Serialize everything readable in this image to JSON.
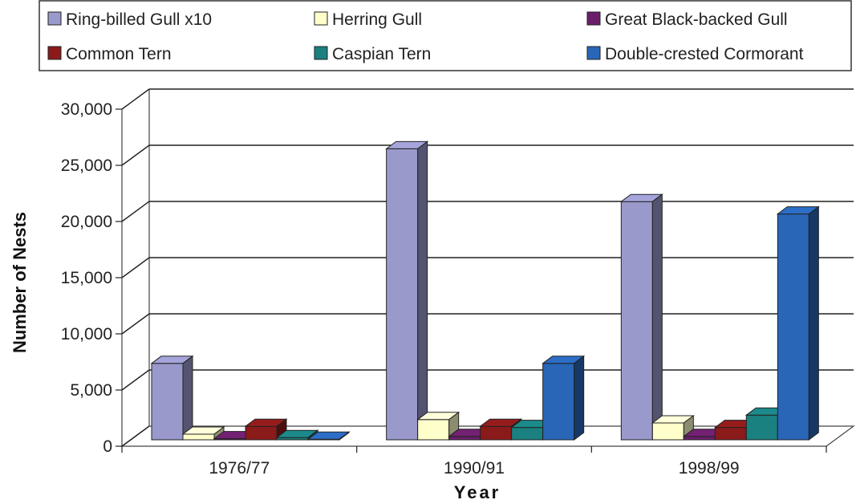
{
  "chart_data": {
    "type": "bar",
    "title": "",
    "xlabel": "Year",
    "ylabel": "Number of Nests",
    "ylim": [
      0,
      30000
    ],
    "yticks": [
      0,
      5000,
      10000,
      15000,
      20000,
      25000,
      30000
    ],
    "ytick_labels": [
      "0",
      "5,000",
      "10,000",
      "15,000",
      "20,000",
      "25,000",
      "30,000"
    ],
    "categories": [
      "1976/77",
      "1990/91",
      "1998/99"
    ],
    "grid": "horizontal",
    "legend_position": "top",
    "series": [
      {
        "name": "Ring-billed Gull x10",
        "values": [
          6800,
          25900,
          21200
        ],
        "color": "#9999cc"
      },
      {
        "name": "Herring Gull",
        "values": [
          500,
          1800,
          1500
        ],
        "color": "#ffffcc"
      },
      {
        "name": "Great Black-backed Gull",
        "values": [
          100,
          300,
          300
        ],
        "color": "#6b1f6b"
      },
      {
        "name": "Common Tern",
        "values": [
          1200,
          1200,
          1100
        ],
        "color": "#8b1a1a"
      },
      {
        "name": "Caspian Tern",
        "values": [
          200,
          1100,
          2200
        ],
        "color": "#1a8080"
      },
      {
        "name": "Double-crested Cormorant",
        "values": [
          50,
          6800,
          20100
        ],
        "color": "#2966b8"
      }
    ]
  }
}
